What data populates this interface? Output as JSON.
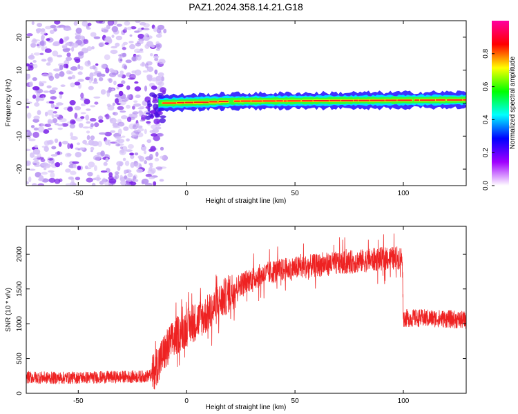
{
  "title": "PAZ1.2024.358.14.21.G18",
  "chart_data": [
    {
      "type": "heatmap",
      "xlabel": "Height of straight line (km)",
      "ylabel": "Frequency (Hz)",
      "xlim": [
        -74,
        129
      ],
      "ylim": [
        -25,
        25
      ],
      "xticks": [
        -50,
        0,
        50,
        100
      ],
      "yticks": [
        -20,
        -10,
        0,
        10,
        20
      ],
      "colorbar": {
        "label": "Normalized spectral amplitude",
        "range": [
          0,
          1
        ],
        "ticks": [
          "0.0",
          "0.2",
          "0.4",
          "0.6",
          "0.8"
        ],
        "tick_values": [
          0.0,
          0.2,
          0.4,
          0.6,
          0.8
        ],
        "colors": [
          "#ffffff",
          "#a000ff",
          "#0000ff",
          "#00ffff",
          "#00ff00",
          "#ffff00",
          "#ff0000",
          "#ff00a0"
        ]
      },
      "noise_region_x": [
        -74,
        -12
      ],
      "signal_center_freq_hz": [
        [
          -12,
          0
        ],
        [
          0,
          0.2
        ],
        [
          20,
          0.6
        ],
        [
          50,
          0.7
        ],
        [
          75,
          0.8
        ],
        [
          100,
          0.9
        ],
        [
          129,
          1.0
        ]
      ]
    },
    {
      "type": "line",
      "color": "#ee2222",
      "xlabel": "Height of straight line (km)",
      "ylabel": "SNR (10 * v/v)",
      "xlim": [
        -74,
        129
      ],
      "ylim": [
        0,
        2400
      ],
      "xticks": [
        -50,
        0,
        50,
        100
      ],
      "yticks": [
        0,
        500,
        1000,
        1500,
        2000
      ],
      "trend": {
        "x": [
          -74,
          -60,
          -40,
          -20,
          -16,
          -12,
          -8,
          -4,
          0,
          5,
          10,
          15,
          20,
          25,
          30,
          40,
          50,
          60,
          70,
          80,
          90,
          99.5,
          100,
          110,
          120,
          129
        ],
        "y": [
          230,
          220,
          230,
          240,
          260,
          500,
          700,
          850,
          950,
          1050,
          1150,
          1300,
          1450,
          1570,
          1650,
          1750,
          1800,
          1840,
          1870,
          1900,
          1930,
          1950,
          1080,
          1080,
          1070,
          1050
        ]
      }
    }
  ]
}
